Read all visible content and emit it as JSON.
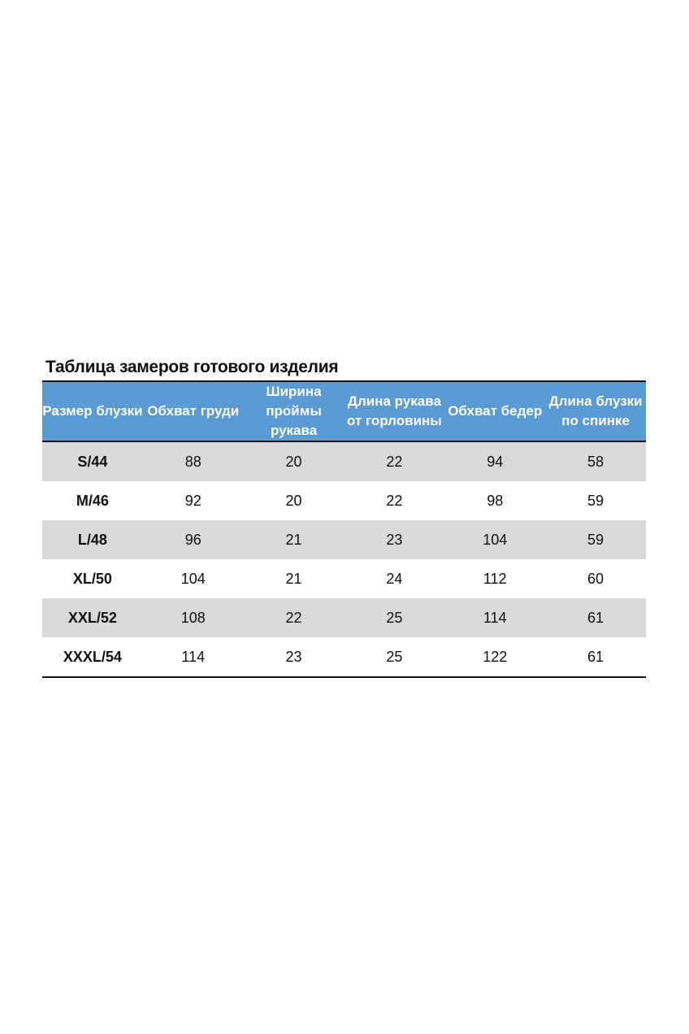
{
  "title": "Таблица замеров готового изделия",
  "headers": [
    "Размер блузки",
    "Обхват груди",
    "Ширина проймы рукава",
    "Длина рукава от горловины",
    "Обхват бедер",
    "Длина блузки по спинке"
  ],
  "header_color": "#5b9bd5",
  "stripe_color": "#d9d9d9",
  "rows": [
    [
      "S/44",
      "88",
      "20",
      "22",
      "94",
      "58"
    ],
    [
      "M/46",
      "92",
      "20",
      "22",
      "98",
      "59"
    ],
    [
      "L/48",
      "96",
      "21",
      "23",
      "104",
      "59"
    ],
    [
      "XL/50",
      "104",
      "21",
      "24",
      "112",
      "60"
    ],
    [
      "XXL/52",
      "108",
      "22",
      "25",
      "114",
      "61"
    ],
    [
      "XXXL/54",
      "114",
      "23",
      "25",
      "122",
      "61"
    ]
  ]
}
